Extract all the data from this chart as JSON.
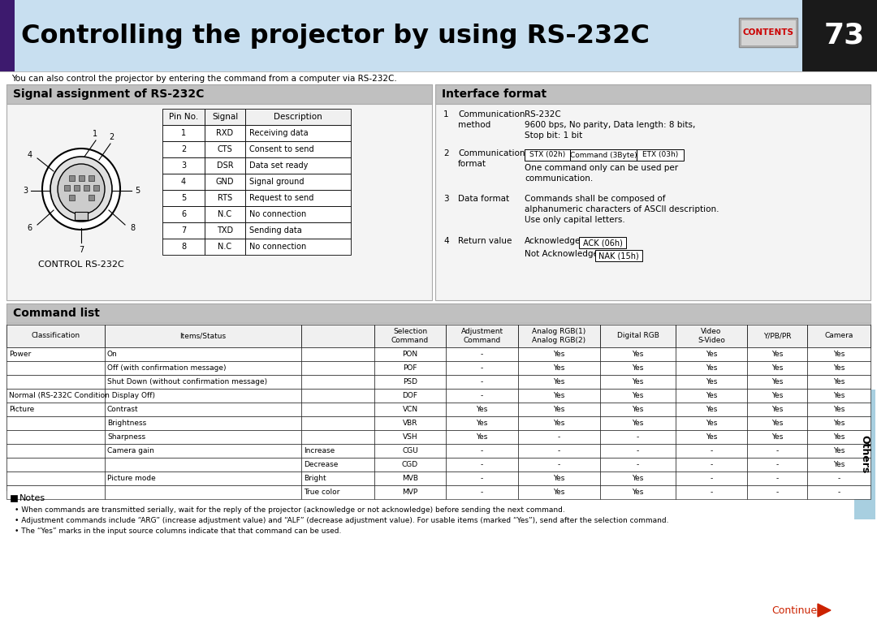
{
  "title": "Controlling the projector by using RS-232C",
  "page_num": "73",
  "subtitle": "You can also control the projector by entering the command from a computer via RS-232C.",
  "section1_title": "Signal assignment of RS-232C",
  "section2_title": "Interface format",
  "section3_title": "Command list",
  "pin_table_headers": [
    "Pin No.",
    "Signal",
    "Description"
  ],
  "pin_table_data": [
    [
      "1",
      "RXD",
      "Receiving data"
    ],
    [
      "2",
      "CTS",
      "Consent to send"
    ],
    [
      "3",
      "DSR",
      "Data set ready"
    ],
    [
      "4",
      "GND",
      "Signal ground"
    ],
    [
      "5",
      "RTS",
      "Request to send"
    ],
    [
      "6",
      "N.C",
      "No connection"
    ],
    [
      "7",
      "TXD",
      "Sending data"
    ],
    [
      "8",
      "N.C",
      "No connection"
    ]
  ],
  "cmd_rows": [
    [
      "Power",
      "On",
      "",
      "PON",
      "-",
      "Yes",
      "Yes",
      "Yes",
      "Yes",
      "Yes"
    ],
    [
      "",
      "Off (with confirmation message)",
      "",
      "POF",
      "-",
      "Yes",
      "Yes",
      "Yes",
      "Yes",
      "Yes"
    ],
    [
      "",
      "Shut Down (without confirmation message)",
      "",
      "PSD",
      "-",
      "Yes",
      "Yes",
      "Yes",
      "Yes",
      "Yes"
    ],
    [
      "Normal (RS-232C Condition Display Off)",
      "",
      "",
      "DOF",
      "-",
      "Yes",
      "Yes",
      "Yes",
      "Yes",
      "Yes"
    ],
    [
      "Picture",
      "Contrast",
      "",
      "VCN",
      "Yes",
      "Yes",
      "Yes",
      "Yes",
      "Yes",
      "Yes"
    ],
    [
      "",
      "Brightness",
      "",
      "VBR",
      "Yes",
      "Yes",
      "Yes",
      "Yes",
      "Yes",
      "Yes"
    ],
    [
      "",
      "Sharpness",
      "",
      "VSH",
      "Yes",
      "-",
      "-",
      "Yes",
      "Yes",
      "Yes"
    ],
    [
      "",
      "Camera gain",
      "Increase",
      "CGU",
      "-",
      "-",
      "-",
      "-",
      "-",
      "Yes"
    ],
    [
      "",
      "",
      "Decrease",
      "CGD",
      "-",
      "-",
      "-",
      "-",
      "-",
      "Yes"
    ],
    [
      "",
      "Picture mode",
      "Bright",
      "MVB",
      "-",
      "Yes",
      "Yes",
      "-",
      "-",
      "-"
    ],
    [
      "",
      "",
      "True color",
      "MVP",
      "-",
      "Yes",
      "Yes",
      "-",
      "-",
      "-"
    ]
  ],
  "notes": [
    "When commands are transmitted serially, wait for the reply of the projector (acknowledge or not acknowledge) before sending the next command.",
    "Adjustment commands include “ARG” (increase adjustment value) and “ALF” (decrease adjustment value). For usable items (marked “Yes”), send after the selection command.",
    "The “Yes” marks in the input source columns indicate that that command can be used."
  ],
  "bg_color": "#ffffff",
  "header_blue": "#c8dff0",
  "section_header_gray": "#c0c0c0",
  "purple_bar": "#3d1a6e",
  "black_bar": "#1a1a1a",
  "red_text": "#cc2200",
  "sidebar_blue": "#a8cfe0",
  "contents_text": "CONTENTS",
  "others_text": "Others",
  "continued_text": "Continued"
}
